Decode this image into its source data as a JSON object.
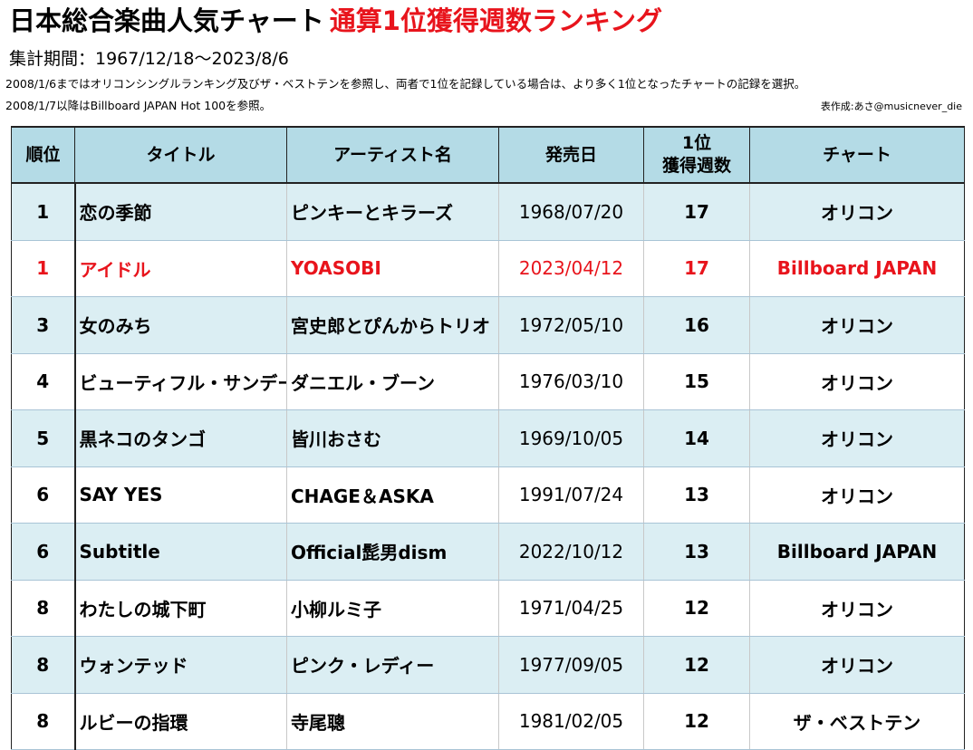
{
  "header": {
    "title_main": "日本総合楽曲人気チャート",
    "title_sub": "通算1位獲得週数ランキング",
    "period": "集計期間：1967/12/18～2023/8/6",
    "note1": "2008/1/6まではオリコンシングルランキング及びザ・ベストテンを参照し、両者で1位を記録している場合は、より多く1位となったチャートの記録を選択。",
    "note2": "2008/1/7以降はBillboard JAPAN Hot 100を参照。",
    "credit": "表作成:あさ@musicnever_die"
  },
  "table": {
    "columns": {
      "rank": "順位",
      "title": "タイトル",
      "artist": "アーティスト名",
      "date": "発売日",
      "weeks_line1": "1位",
      "weeks_line2": "獲得週数",
      "chart": "チャート"
    },
    "rows": [
      {
        "rank": "1",
        "title": "恋の季節",
        "artist": "ピンキーとキラーズ",
        "date": "1968/07/20",
        "weeks": "17",
        "chart": "オリコン",
        "highlight": false
      },
      {
        "rank": "1",
        "title": "アイドル",
        "artist": "YOASOBI",
        "date": "2023/04/12",
        "weeks": "17",
        "chart": "Billboard JAPAN",
        "highlight": true
      },
      {
        "rank": "3",
        "title": "女のみち",
        "artist": "宮史郎とぴんからトリオ",
        "date": "1972/05/10",
        "weeks": "16",
        "chart": "オリコン",
        "highlight": false
      },
      {
        "rank": "4",
        "title": "ビューティフル・サンデー",
        "artist": "ダニエル・ブーン",
        "date": "1976/03/10",
        "weeks": "15",
        "chart": "オリコン",
        "highlight": false
      },
      {
        "rank": "5",
        "title": "黒ネコのタンゴ",
        "artist": "皆川おさむ",
        "date": "1969/10/05",
        "weeks": "14",
        "chart": "オリコン",
        "highlight": false
      },
      {
        "rank": "6",
        "title": "SAY YES",
        "artist": "CHAGE＆ASKA",
        "date": "1991/07/24",
        "weeks": "13",
        "chart": "オリコン",
        "highlight": false
      },
      {
        "rank": "6",
        "title": "Subtitle",
        "artist": "Official髭男dism",
        "date": "2022/10/12",
        "weeks": "13",
        "chart": "Billboard JAPAN",
        "highlight": false
      },
      {
        "rank": "8",
        "title": "わたしの城下町",
        "artist": "小柳ルミ子",
        "date": "1971/04/25",
        "weeks": "12",
        "chart": "オリコン",
        "highlight": false
      },
      {
        "rank": "8",
        "title": "ウォンテッド",
        "artist": "ピンク・レディー",
        "date": "1977/09/05",
        "weeks": "12",
        "chart": "オリコン",
        "highlight": false
      },
      {
        "rank": "8",
        "title": "ルビーの指環",
        "artist": "寺尾聰",
        "date": "1981/02/05",
        "weeks": "12",
        "chart": "ザ・ベストテン",
        "highlight": false
      }
    ]
  },
  "colors": {
    "accent_red": "#e8141c",
    "header_bg": "#b4dbe6",
    "band_bg": "#dbeef3"
  }
}
